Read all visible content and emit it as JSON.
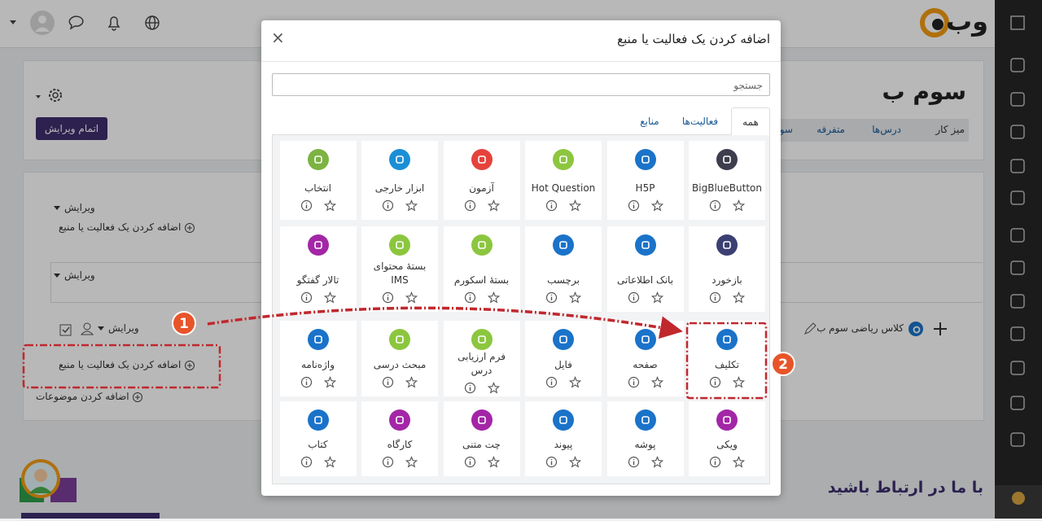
{
  "navbar": {
    "logo": "وب"
  },
  "course": {
    "title": "سوم ب",
    "breadcrumb": [
      "میز کار",
      "درس‌ها",
      "متفرقه",
      "سو"
    ],
    "finish_editing": "اتمام ویرایش"
  },
  "sections": {
    "edit_1": "ویرایش",
    "add_1": "اضافه کردن یک فعالیت یا منبع",
    "edit_2": "ویرایش",
    "edit_3": "ویرایش",
    "activity": "کلاس ریاضی سوم ب",
    "add_2": "اضافه کردن یک فعالیت یا منبع",
    "add_topics": "اضافه کردن موضوعات"
  },
  "footer": {
    "contact": "با ما در ارتباط باشید"
  },
  "modal": {
    "title": "اضافه کردن یک فعالیت یا منبع",
    "close": "×",
    "search_placeholder": "جستجو",
    "tabs": [
      "همه",
      "فعالیت‌ها",
      "منابع"
    ],
    "items": [
      {
        "label": "BigBlueButton",
        "color": "#3d3d4d"
      },
      {
        "label": "H5P",
        "color": "#1a73c9"
      },
      {
        "label": "Hot Question",
        "color": "#8cc63f"
      },
      {
        "label": "آزمون",
        "color": "#e5423c"
      },
      {
        "label": "ابزار خارجی",
        "color": "#1a8fd6"
      },
      {
        "label": "انتخاب",
        "color": "#7cb342"
      },
      {
        "label": "بازخورد",
        "color": "#3b3f72"
      },
      {
        "label": "بانک اطلاعاتی",
        "color": "#1a73c9"
      },
      {
        "label": "برچسب",
        "color": "#1a73c9"
      },
      {
        "label": "بستهٔ اسکورم",
        "color": "#8cc63f"
      },
      {
        "label": "بستهٔ محتوای IMS",
        "color": "#8cc63f"
      },
      {
        "label": "تالار گفتگو",
        "color": "#a326a6"
      },
      {
        "label": "تکلیف",
        "color": "#1a73c9"
      },
      {
        "label": "صفحه",
        "color": "#1a73c9"
      },
      {
        "label": "فایل",
        "color": "#1a73c9"
      },
      {
        "label": "فرم ارزیابی درس",
        "color": "#8cc63f"
      },
      {
        "label": "مبحث درسی",
        "color": "#8cc63f"
      },
      {
        "label": "واژه‌نامه",
        "color": "#1a73c9"
      },
      {
        "label": "ویکی",
        "color": "#a326a6"
      },
      {
        "label": "پوشه",
        "color": "#1a73c9"
      },
      {
        "label": "پیوند",
        "color": "#1a73c9"
      },
      {
        "label": "چت متنی",
        "color": "#a326a6"
      },
      {
        "label": "کارگاه",
        "color": "#a326a6"
      },
      {
        "label": "کتاب",
        "color": "#1a73c9"
      }
    ]
  },
  "annotations": [
    "1",
    "2"
  ]
}
